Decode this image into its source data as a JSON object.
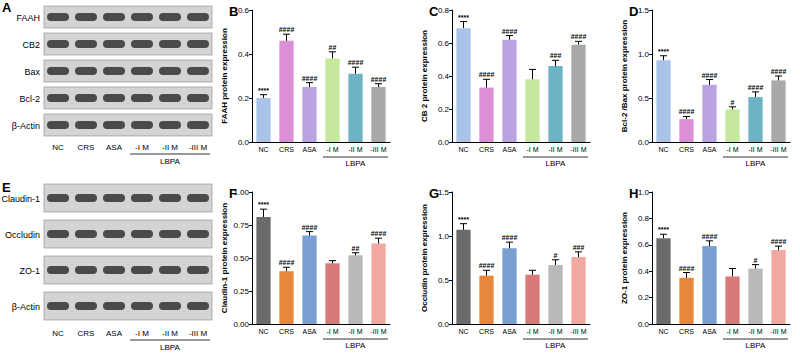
{
  "blots": [
    {
      "panel": "A",
      "proteins": [
        "FAAH",
        "CB2",
        "Bax",
        "Bcl-2",
        "β-Actin"
      ],
      "lanes": [
        "NC",
        "CRS",
        "ASA",
        "-I M",
        "-II M",
        "-III M"
      ],
      "group_label": "LBPA",
      "group_categories": [
        "-I M",
        "-II M",
        "-III M"
      ]
    },
    {
      "panel": "E",
      "proteins": [
        "Claudin-1",
        "Occludin",
        "ZO-1",
        "β-Actin"
      ],
      "lanes": [
        "NC",
        "CRS",
        "ASA",
        "-I M",
        "-II M",
        "-III M"
      ],
      "group_label": "LBPA",
      "group_categories": [
        "-I M",
        "-II M",
        "-III M"
      ]
    }
  ],
  "chart_data": [
    {
      "panel": "B",
      "type": "bar",
      "ylabel": "FAAH protein expression",
      "categories": [
        "NC",
        "CRS",
        "ASA",
        "-I M",
        "-II M",
        "-III M"
      ],
      "group_label": "LBPA",
      "group_categories": [
        "-I M",
        "-II M",
        "-III M"
      ],
      "values": [
        0.2,
        0.46,
        0.25,
        0.38,
        0.31,
        0.25
      ],
      "errors": [
        0.015,
        0.03,
        0.02,
        0.03,
        0.03,
        0.015
      ],
      "significance": [
        "****",
        "####",
        "####",
        "##",
        "####",
        "####"
      ],
      "colors": [
        "#a9c4e8",
        "#dc8fd6",
        "#b9a3e0",
        "#c6e89c",
        "#6db3c4",
        "#a9a9a9"
      ],
      "ylim": [
        0,
        0.6
      ],
      "yticks": [
        {
          "value": 0,
          "label": "0.0"
        },
        {
          "value": 0.2,
          "label": "0.2"
        },
        {
          "value": 0.4,
          "label": "0.4"
        },
        {
          "value": 0.6,
          "label": "0.6"
        }
      ],
      "grid": false
    },
    {
      "panel": "C",
      "type": "bar",
      "ylabel": "CB 2 protein expression",
      "categories": [
        "NC",
        "CRS",
        "ASA",
        "-I M",
        "-II M",
        "-III M"
      ],
      "group_label": "LBPA",
      "group_categories": [
        "-I M",
        "-II M",
        "-III M"
      ],
      "values": [
        0.69,
        0.33,
        0.62,
        0.38,
        0.46,
        0.59
      ],
      "errors": [
        0.04,
        0.05,
        0.025,
        0.06,
        0.035,
        0.02
      ],
      "significance": [
        "****",
        "####",
        "####",
        null,
        "###",
        "####"
      ],
      "colors": [
        "#a9c4e8",
        "#dc8fd6",
        "#b9a3e0",
        "#c6e89c",
        "#6db3c4",
        "#a9a9a9"
      ],
      "ylim": [
        0,
        0.8
      ],
      "yticks": [
        {
          "value": 0,
          "label": "0.0"
        },
        {
          "value": 0.2,
          "label": "0.2"
        },
        {
          "value": 0.4,
          "label": "0.4"
        },
        {
          "value": 0.6,
          "label": "0.6"
        },
        {
          "value": 0.8,
          "label": "0.8"
        }
      ],
      "grid": false
    },
    {
      "panel": "D",
      "type": "bar",
      "ylabel": "Bcl-2 /Bax protein expression",
      "categories": [
        "NC",
        "CRS",
        "ASA",
        "-I M",
        "-II M",
        "-III M"
      ],
      "group_label": "LBPA",
      "group_categories": [
        "-I M",
        "-II M",
        "-III M"
      ],
      "values": [
        0.93,
        0.26,
        0.65,
        0.37,
        0.51,
        0.7
      ],
      "errors": [
        0.05,
        0.03,
        0.06,
        0.03,
        0.06,
        0.05
      ],
      "significance": [
        "****",
        "####",
        "####",
        "#",
        "####",
        "####"
      ],
      "colors": [
        "#a9c4e8",
        "#dc8fd6",
        "#b9a3e0",
        "#c6e89c",
        "#6db3c4",
        "#a9a9a9"
      ],
      "ylim": [
        0,
        1.5
      ],
      "yticks": [
        {
          "value": 0,
          "label": "0.0"
        },
        {
          "value": 0.5,
          "label": "0.5"
        },
        {
          "value": 1,
          "label": "1.0"
        },
        {
          "value": 1.5,
          "label": "1.5"
        }
      ],
      "grid": false
    },
    {
      "panel": "F",
      "type": "bar",
      "ylabel": "Claudin-1 protein expression",
      "categories": [
        "NC",
        "CRS",
        "ASA",
        "-I M",
        "-II M",
        "-III M"
      ],
      "group_label": "LBPA",
      "group_categories": [
        "-I M",
        "-II M",
        "-III M"
      ],
      "values": [
        0.81,
        0.4,
        0.67,
        0.46,
        0.52,
        0.61
      ],
      "errors": [
        0.06,
        0.03,
        0.03,
        0.02,
        0.02,
        0.04
      ],
      "significance": [
        "****",
        "####",
        "####",
        null,
        "##",
        "####"
      ],
      "colors": [
        "#6b6b6b",
        "#e8873a",
        "#7a9fd1",
        "#d87a7a",
        "#b9b9b9",
        "#f1a8a0"
      ],
      "ylim": [
        0,
        1
      ],
      "yticks": [
        {
          "value": 0,
          "label": "0.00"
        },
        {
          "value": 0.25,
          "label": "0.25"
        },
        {
          "value": 0.5,
          "label": "0.50"
        },
        {
          "value": 0.75,
          "label": "0.75"
        },
        {
          "value": 1,
          "label": "1.00"
        }
      ],
      "grid": false
    },
    {
      "panel": "G",
      "type": "bar",
      "ylabel": "Occludin protein expression",
      "categories": [
        "NC",
        "CRS",
        "ASA",
        "-I M",
        "-II M",
        "-III M"
      ],
      "group_label": "LBPA",
      "group_categories": [
        "-I M",
        "-II M",
        "-III M"
      ],
      "values": [
        1.07,
        0.55,
        0.86,
        0.56,
        0.67,
        0.76
      ],
      "errors": [
        0.07,
        0.06,
        0.07,
        0.05,
        0.06,
        0.06
      ],
      "significance": [
        "****",
        "####",
        "####",
        null,
        "#",
        "###"
      ],
      "colors": [
        "#6b6b6b",
        "#e8873a",
        "#7a9fd1",
        "#d87a7a",
        "#b9b9b9",
        "#f1a8a0"
      ],
      "ylim": [
        0,
        1.5
      ],
      "yticks": [
        {
          "value": 0,
          "label": "0.0"
        },
        {
          "value": 0.5,
          "label": "0.5"
        },
        {
          "value": 1,
          "label": "1.0"
        },
        {
          "value": 1.5,
          "label": "1.5"
        }
      ],
      "grid": false
    },
    {
      "panel": "H",
      "type": "bar",
      "ylabel": "ZO-1 protein expression",
      "categories": [
        "NC",
        "CRS",
        "ASA",
        "-I M",
        "-II M",
        "-III M"
      ],
      "group_label": "LBPA",
      "group_categories": [
        "-I M",
        "-II M",
        "-III M"
      ],
      "values": [
        0.65,
        0.35,
        0.59,
        0.36,
        0.42,
        0.56
      ],
      "errors": [
        0.03,
        0.04,
        0.04,
        0.06,
        0.03,
        0.03
      ],
      "significance": [
        "****",
        "####",
        "####",
        null,
        "#",
        "####"
      ],
      "colors": [
        "#6b6b6b",
        "#e8873a",
        "#7a9fd1",
        "#d87a7a",
        "#b9b9b9",
        "#f1a8a0"
      ],
      "ylim": [
        0,
        1
      ],
      "yticks": [
        {
          "value": 0,
          "label": "0.0"
        },
        {
          "value": 0.2,
          "label": "0.2"
        },
        {
          "value": 0.4,
          "label": "0.4"
        },
        {
          "value": 0.6,
          "label": "0.6"
        },
        {
          "value": 0.8,
          "label": "0.8"
        },
        {
          "value": 1,
          "label": "1.0"
        }
      ],
      "grid": false
    }
  ]
}
